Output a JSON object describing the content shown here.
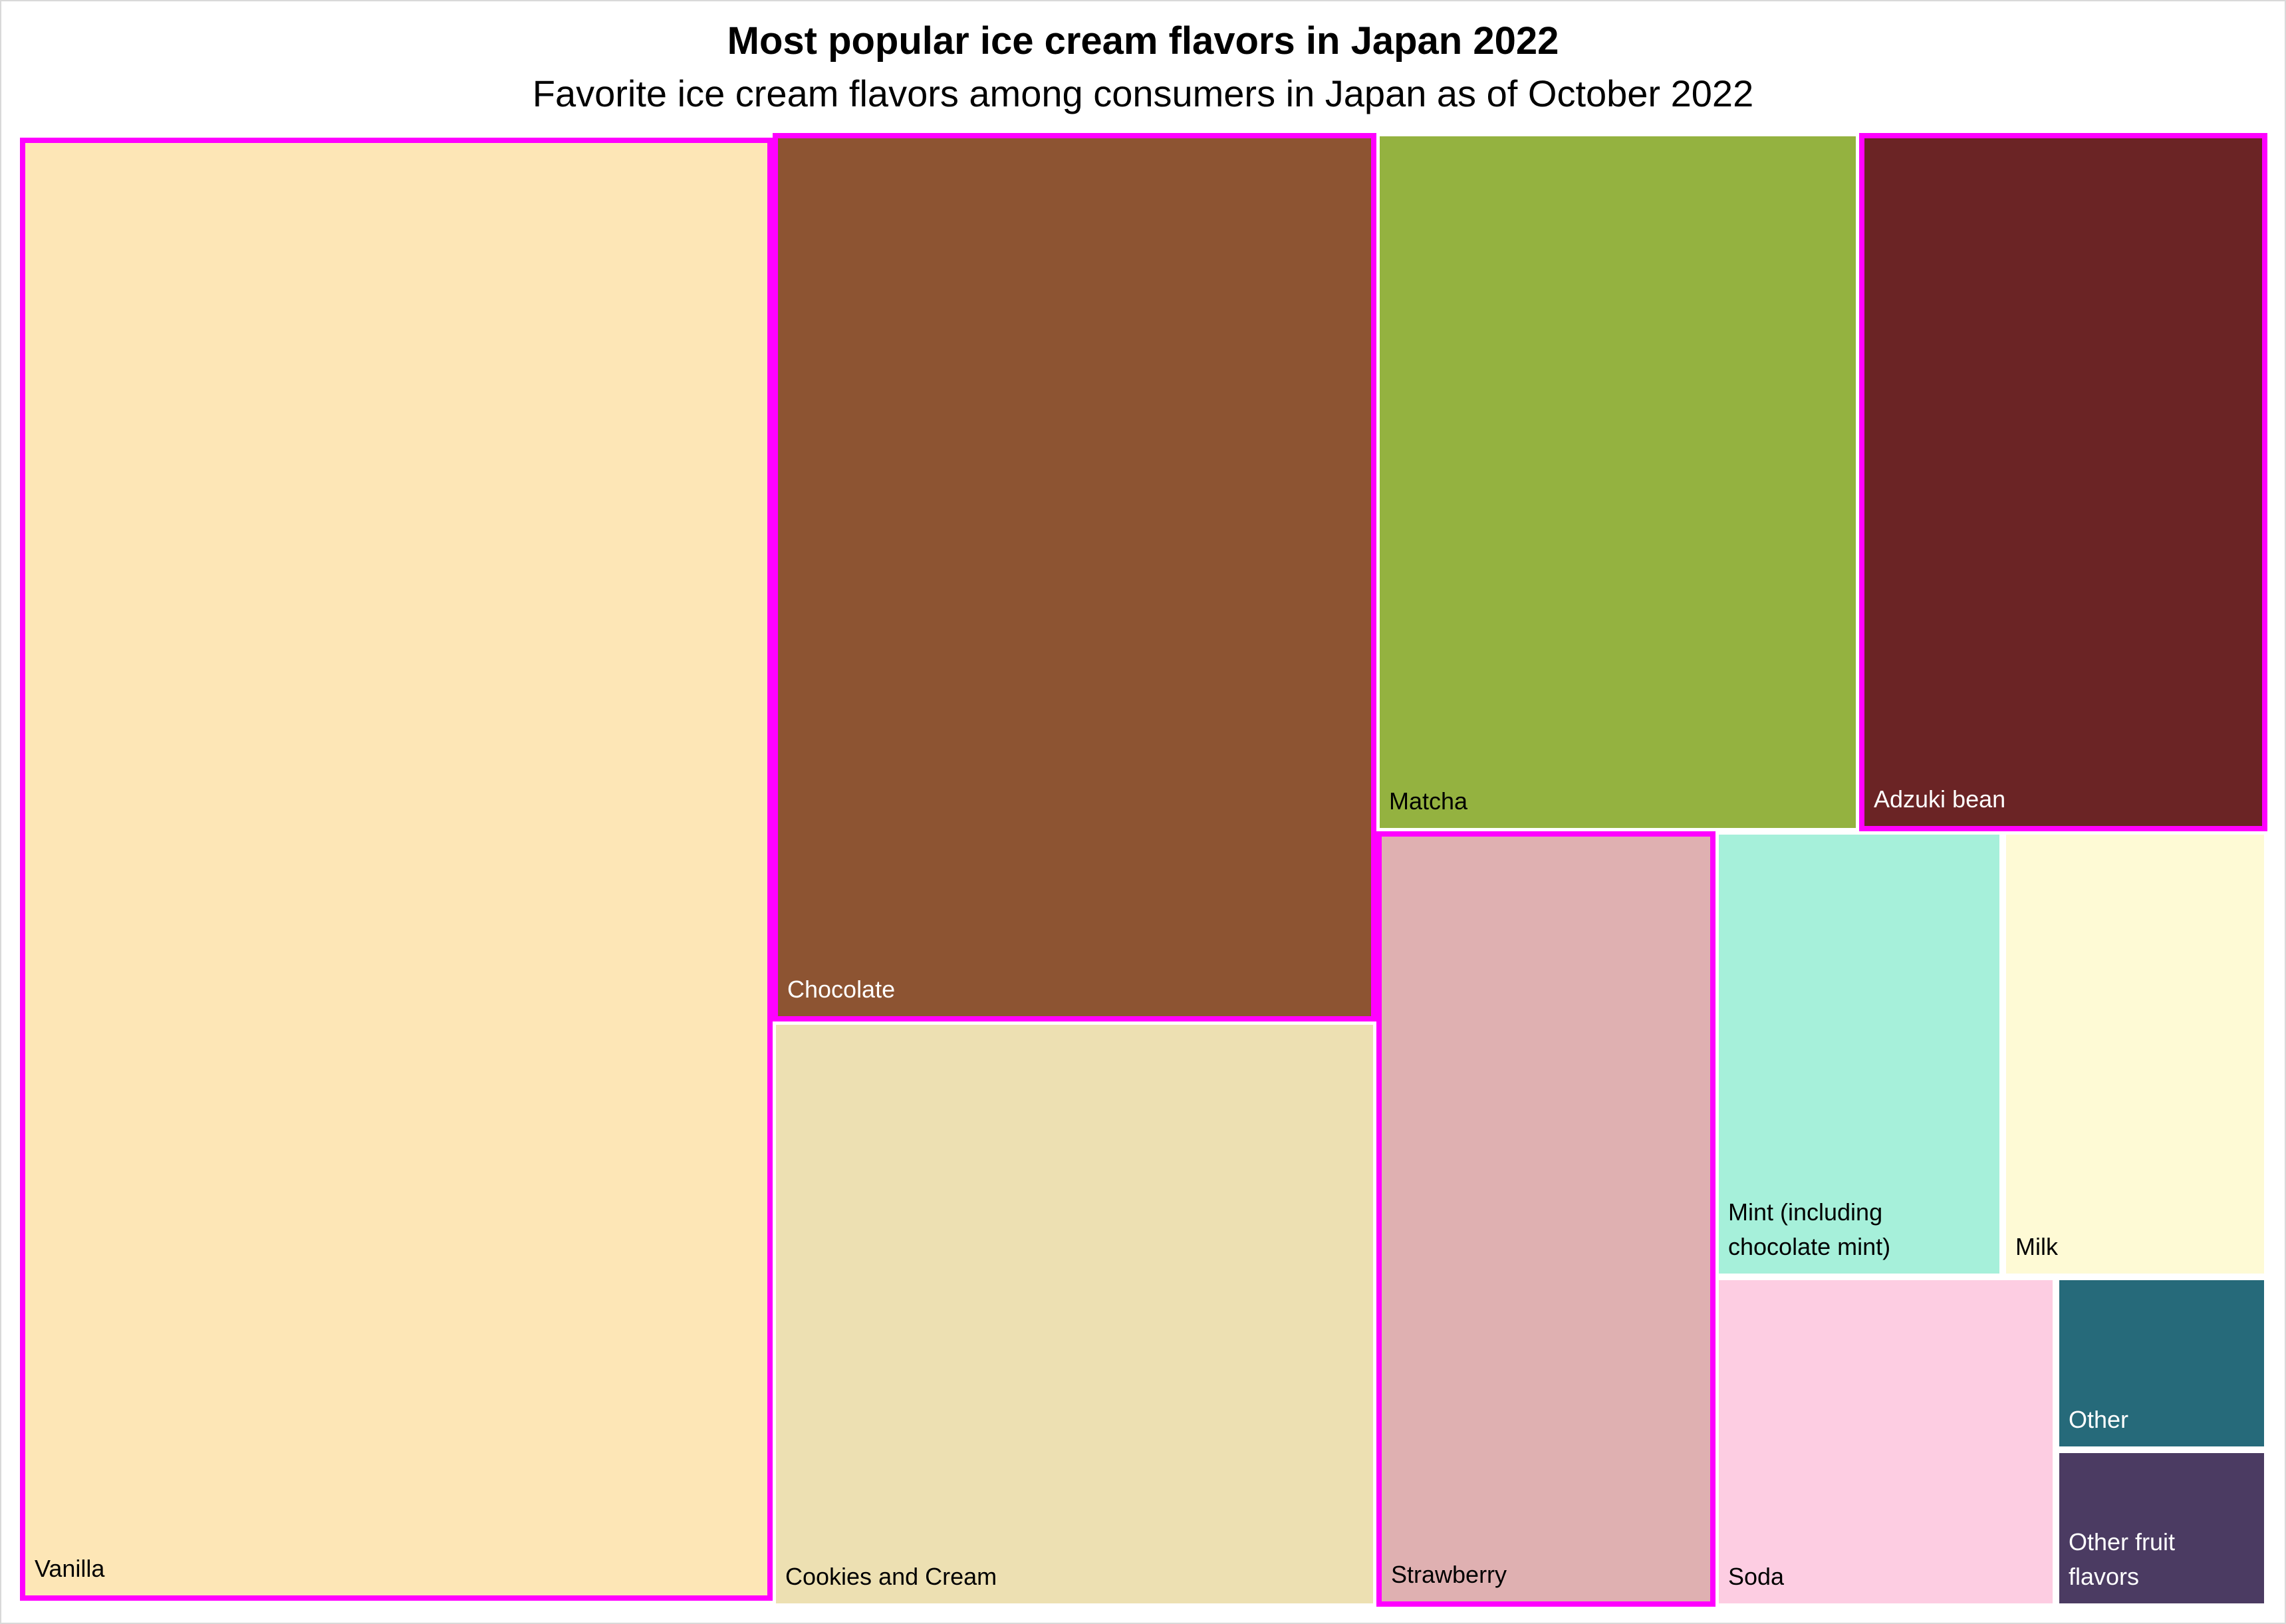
{
  "chart_data": {
    "type": "treemap",
    "title": "Most popular ice cream flavors in Japan 2022",
    "subtitle": "Favorite ice cream flavors among consumers in Japan as of October 2022",
    "highlight_color": "#ff00ff",
    "items": [
      {
        "label": "Vanilla",
        "value": 35.6,
        "color": "#fde6b6",
        "text_color": "#000000",
        "highlight": true
      },
      {
        "label": "Chocolate",
        "value": 17.3,
        "color": "#8d5432",
        "text_color": "#ffffff",
        "highlight": true
      },
      {
        "label": "Cookies and Cream",
        "value": 11.6,
        "color": "#ede0b2",
        "text_color": "#000000",
        "highlight": false
      },
      {
        "label": "Matcha",
        "value": 10.5,
        "color": "#94b240",
        "text_color": "#000000",
        "highlight": false
      },
      {
        "label": "Adzuki bean",
        "value": 8.9,
        "color": "#6b2425",
        "text_color": "#ffffff",
        "highlight": true
      },
      {
        "label": "Strawberry",
        "value": 7.6,
        "color": "#dfb0b1",
        "text_color": "#000000",
        "highlight": true
      },
      {
        "label": "Mint (including\nchocolate mint)",
        "value": 3.9,
        "color": "#a6f0da",
        "text_color": "#000000",
        "highlight": false
      },
      {
        "label": "Milk",
        "value": 3.5,
        "color": "#fefad5",
        "text_color": "#000000",
        "highlight": false
      },
      {
        "label": "Soda",
        "value": 3.7,
        "color": "#fdcde2",
        "text_color": "#000000",
        "highlight": false
      },
      {
        "label": "Other",
        "value": 1.4,
        "color": "#266a7a",
        "text_color": "#ffffff",
        "highlight": false
      },
      {
        "label": "Other fruit\n   flavors",
        "value": 1.4,
        "color": "#4b3b62",
        "text_color": "#ffffff",
        "highlight": false
      }
    ]
  }
}
